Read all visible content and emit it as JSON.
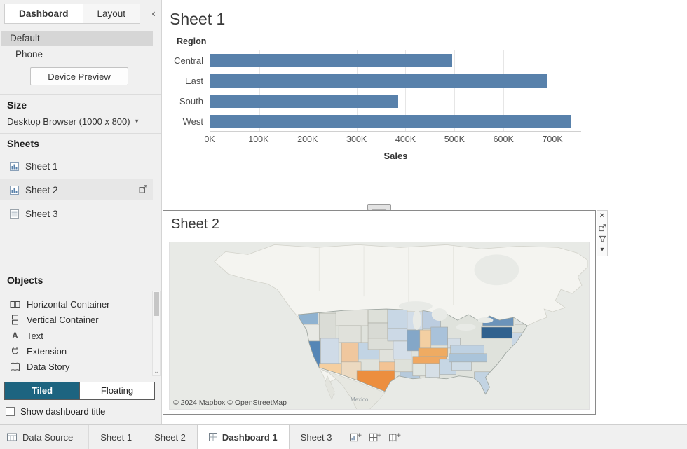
{
  "icons": {
    "collapse": "‹",
    "dropdown_caret": "▾",
    "close": "✕",
    "scroll_down": "⌄",
    "toolbar_caret": "▾"
  },
  "colors": {
    "bar_color": "#5881ab",
    "tiled_button_bg": "#1d6480",
    "selected_device_bg": "#d6d6d6",
    "selected_sheet_bg": "#e7e7e7",
    "dark_state_blue": "#30618e",
    "strong_state_orange": "#ec8e3f"
  },
  "sidebar": {
    "tabs": [
      {
        "label": "Dashboard",
        "active": true
      },
      {
        "label": "Layout",
        "active": false
      }
    ],
    "devices": [
      {
        "label": "Default",
        "selected": true
      },
      {
        "label": "Phone",
        "selected": false
      }
    ],
    "device_preview_button": "Device Preview",
    "size_section": {
      "heading": "Size",
      "value": "Desktop Browser (1000 x 800)"
    },
    "sheets_section": {
      "heading": "Sheets",
      "items": [
        {
          "label": "Sheet 1",
          "selected": false
        },
        {
          "label": "Sheet 2",
          "selected": true
        },
        {
          "label": "Sheet 3",
          "selected": false
        }
      ]
    },
    "objects_section": {
      "heading": "Objects",
      "items": [
        {
          "label": "Horizontal Container"
        },
        {
          "label": "Vertical Container"
        },
        {
          "label": "Text"
        },
        {
          "label": "Extension"
        },
        {
          "label": "Data Story"
        }
      ]
    },
    "layout_mode": {
      "tiled": "Tiled",
      "floating": "Floating",
      "active": "Tiled"
    },
    "show_title_label": "Show dashboard title",
    "show_title_checked": false
  },
  "canvas": {
    "sheet1_title": "Sheet 1",
    "sheet2_title": "Sheet 2",
    "map_attribution": "© 2024 Mapbox © OpenStreetMap",
    "map_small_label": "Mexico"
  },
  "statusbar": {
    "data_source_label": "Data Source",
    "tabs": [
      {
        "label": "Sheet 1",
        "active": false
      },
      {
        "label": "Sheet 2",
        "active": false
      },
      {
        "label": "Dashboard 1",
        "active": true
      },
      {
        "label": "Sheet 3",
        "active": false
      }
    ]
  },
  "chart_data": [
    {
      "type": "bar",
      "orientation": "horizontal",
      "title": "Sheet 1",
      "row_header": "Region",
      "categories": [
        "Central",
        "East",
        "South",
        "West"
      ],
      "values": [
        495000,
        690000,
        385000,
        740000
      ],
      "xlabel": "Sales",
      "x_ticks": [
        "0K",
        "100K",
        "200K",
        "300K",
        "400K",
        "500K",
        "600K",
        "700K"
      ],
      "x_tick_values": [
        0,
        100000,
        200000,
        300000,
        400000,
        500000,
        600000,
        700000
      ],
      "xlim": [
        0,
        760000
      ],
      "bar_color": "#5881ab",
      "grid": true,
      "legend": "none"
    },
    {
      "type": "choropleth",
      "title": "Sheet 2",
      "geography": "North America (US states)",
      "palette": "orange-blue diverging",
      "attribution": "© 2024 Mapbox © OpenStreetMap",
      "visible_label": "Mexico"
    }
  ]
}
